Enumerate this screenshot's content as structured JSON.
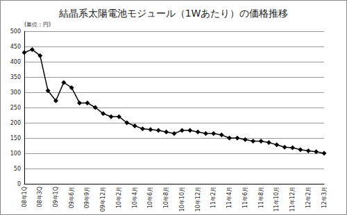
{
  "chart_data": {
    "type": "line",
    "title": "結晶系太陽電池モジュール（1Wあたり）の価格推移",
    "y_label": "(単位：円)",
    "categories": [
      "08年1Q",
      null,
      "08年3Q",
      null,
      "09年1Q",
      null,
      "09年6月",
      null,
      "09年9月",
      null,
      "09年12月",
      null,
      "10年2月",
      null,
      "10年4月",
      null,
      "10年6月",
      null,
      "10年8月",
      null,
      "10年10月",
      null,
      "10年12月",
      null,
      "11年2月",
      null,
      "11年4月",
      null,
      "11年6月",
      null,
      "11年8月",
      null,
      "11年10月",
      null,
      "11年12月",
      null,
      "12年2月",
      null,
      "12年3月"
    ],
    "values": [
      430,
      440,
      420,
      305,
      272,
      332,
      315,
      265,
      265,
      250,
      230,
      220,
      220,
      200,
      190,
      180,
      178,
      175,
      170,
      165,
      175,
      175,
      170,
      165,
      165,
      160,
      150,
      150,
      145,
      140,
      140,
      135,
      128,
      120,
      118,
      112,
      108,
      105,
      100
    ],
    "color": "#000000",
    "marker": "diamond",
    "ylim": [
      0,
      500
    ],
    "yticks": [
      0,
      50,
      100,
      150,
      200,
      250,
      300,
      350,
      400,
      450,
      500
    ],
    "grid": true
  }
}
